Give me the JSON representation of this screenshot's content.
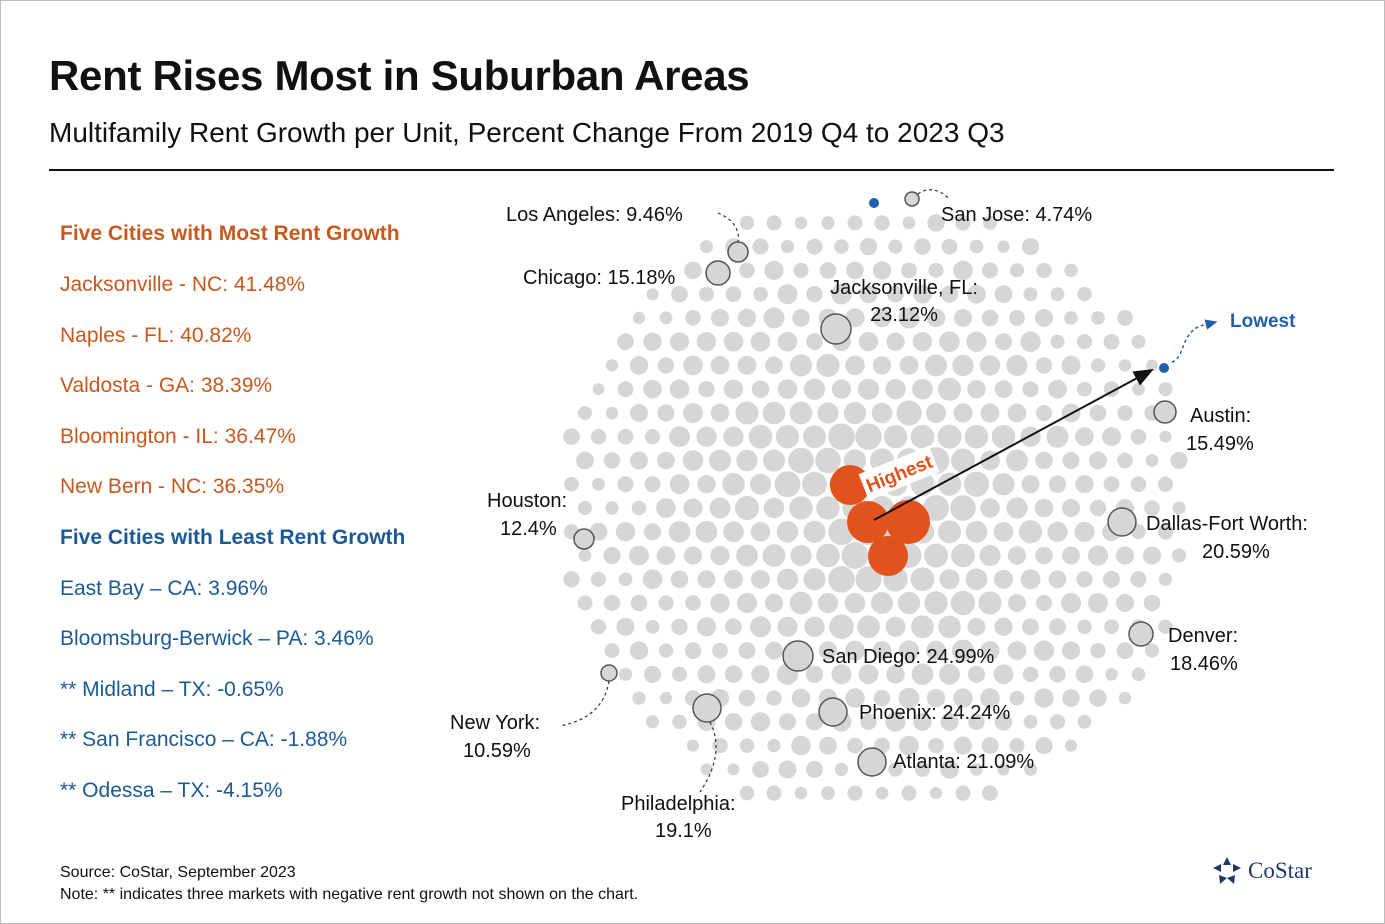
{
  "title": "Rent Rises Most in Suburban Areas",
  "subtitle": "Multifamily Rent Growth per Unit, Percent Change From 2019 Q4 to 2023 Q3",
  "most_heading": "Five Cities with Most Rent Growth",
  "most": [
    "Jacksonville - NC: 41.48%",
    "Naples - FL: 40.82%",
    "Valdosta - GA: 38.39%",
    "Bloomington - IL: 36.47%",
    "New Bern - NC: 36.35%"
  ],
  "least_heading": "Five Cities with Least Rent Growth",
  "least": [
    "East Bay – CA: 3.96%",
    "Bloomsburg-Berwick – PA: 3.46%",
    "** Midland – TX: -0.65%",
    "** San Francisco – CA: -1.88%",
    "** Odessa – TX: -4.15%"
  ],
  "source": "Source: CoStar, September 2023",
  "note": "Note: ** indicates three markets with negative rent growth not shown on the chart.",
  "logo_text": "CoStar",
  "colors": {
    "highest": "#e2521d",
    "lowest": "#1f5fae",
    "bubble": "#d6d6d6",
    "most_text": "#c8591e",
    "least_text": "#1a5a96"
  },
  "chart_data": {
    "type": "bubble-cluster",
    "title": "Rent Rises Most in Suburban Areas",
    "unit": "percent change",
    "labeled_markets": [
      {
        "label": "Los Angeles: 9.46%",
        "value": 9.46
      },
      {
        "label": "San Jose: 4.74%",
        "value": 4.74
      },
      {
        "label": "Chicago: 15.18%",
        "value": 15.18
      },
      {
        "label": "Jacksonville, FL:",
        "label2": "23.12%",
        "value": 23.12
      },
      {
        "label": "Austin:",
        "label2": "15.49%",
        "value": 15.49
      },
      {
        "label": "Houston:",
        "label2": "12.4%",
        "value": 12.4
      },
      {
        "label": "Dallas-Fort Worth:",
        "label2": "20.59%",
        "value": 20.59
      },
      {
        "label": "Denver:",
        "label2": "18.46%",
        "value": 18.46
      },
      {
        "label": "San Diego: 24.99%",
        "value": 24.99
      },
      {
        "label": "New York:",
        "label2": "10.59%",
        "value": 10.59
      },
      {
        "label": "Phoenix: 24.24%",
        "value": 24.24
      },
      {
        "label": "Atlanta: 21.09%",
        "value": 21.09
      },
      {
        "label": "Philadelphia:",
        "label2": "19.1%",
        "value": 19.1
      }
    ],
    "highest_label": "Highest",
    "lowest_label": "Lowest"
  }
}
